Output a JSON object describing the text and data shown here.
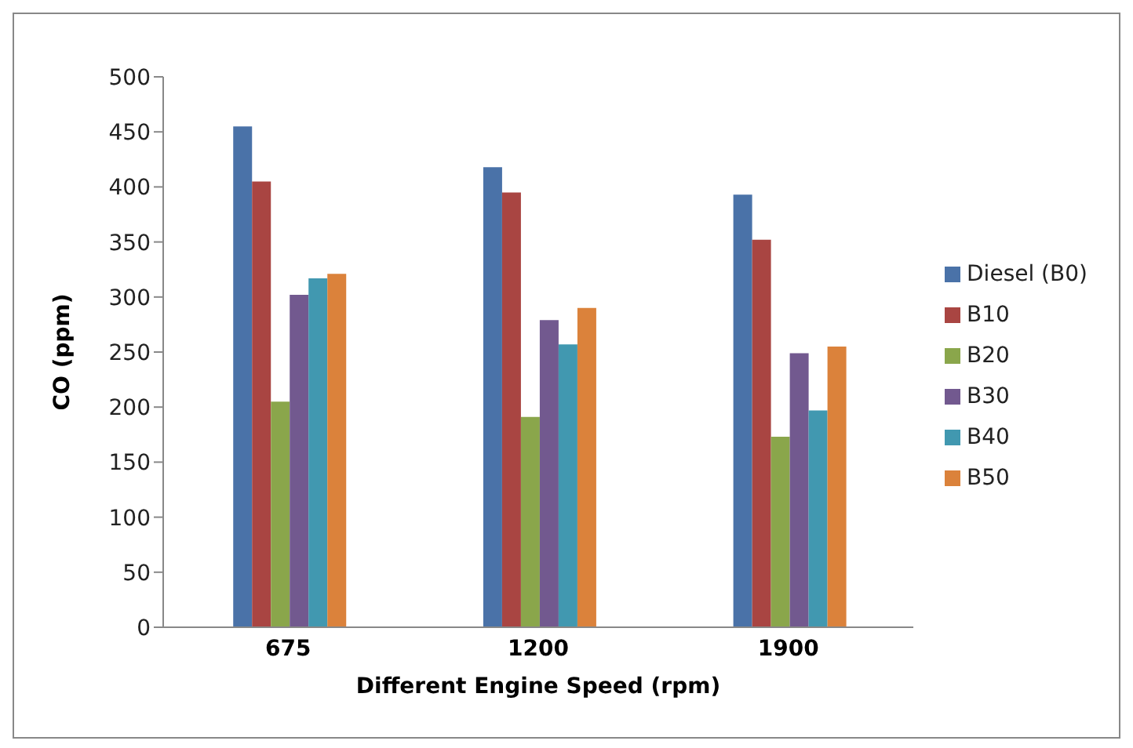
{
  "chart_data": {
    "type": "bar",
    "xlabel": "Different Engine Speed (rpm)",
    "ylabel": "CO (ppm)",
    "categories": [
      "675",
      "1200",
      "1900"
    ],
    "series": [
      {
        "name": "Diesel (B0)",
        "color": "#4a72a8",
        "values": [
          455,
          418,
          393
        ]
      },
      {
        "name": "B10",
        "color": "#a94542",
        "values": [
          405,
          395,
          352
        ]
      },
      {
        "name": "B20",
        "color": "#8aa64b",
        "values": [
          205,
          191,
          173
        ]
      },
      {
        "name": "B30",
        "color": "#72598f",
        "values": [
          302,
          279,
          249
        ]
      },
      {
        "name": "B40",
        "color": "#4198b0",
        "values": [
          317,
          257,
          197
        ]
      },
      {
        "name": "B50",
        "color": "#db823b",
        "values": [
          321,
          290,
          255
        ]
      }
    ],
    "ylim": [
      0,
      500
    ],
    "yticks": [
      0,
      50,
      100,
      150,
      200,
      250,
      300,
      350,
      400,
      450,
      500
    ],
    "legend": "right"
  }
}
